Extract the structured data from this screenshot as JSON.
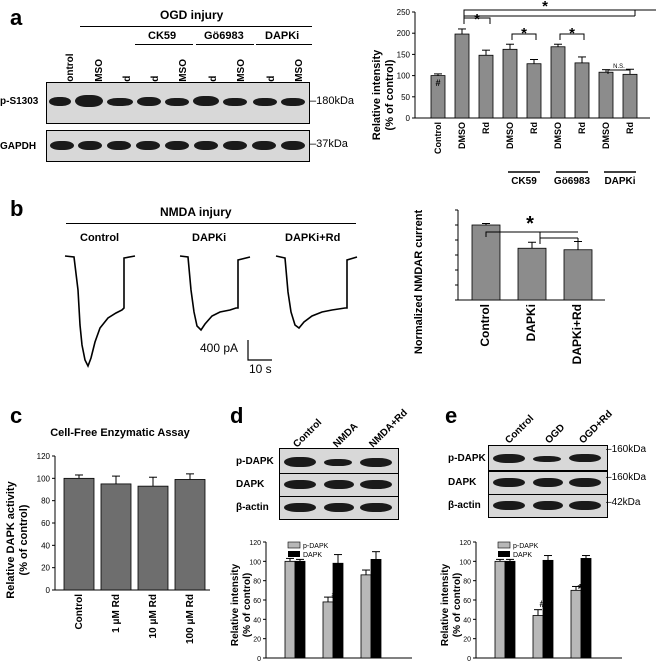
{
  "panel_a": {
    "letter": "a",
    "ogd_header": "OGD injury",
    "group_labels": [
      "CK59",
      "Gö6983",
      "DAPKi"
    ],
    "lane_labels": [
      "Control",
      "DMSO",
      "Rd",
      "Rd",
      "DMSO",
      "Rd",
      "DMSO",
      "Rd",
      "DMSO"
    ],
    "row_labels": [
      "p-S1303",
      "GAPDH"
    ],
    "size_markers": [
      "180kDa",
      "37kDa"
    ],
    "chart": {
      "ylabel": "Relative intensity\n(% of control)",
      "categories": [
        "Control",
        "DMSO",
        "Rd",
        "DMSO",
        "Rd",
        "DMSO",
        "Rd",
        "DMSO",
        "Rd"
      ],
      "group_labels": [
        "CK59",
        "Gö6983",
        "DAPKi"
      ],
      "ticks": [
        "0",
        "50",
        "100",
        "150",
        "200",
        "250"
      ],
      "marks": {
        "hash": "#",
        "star": "*",
        "ns": "N.S."
      }
    }
  },
  "panel_b": {
    "letter": "b",
    "header": "NMDA injury",
    "trace_labels": [
      "Control",
      "DAPKi",
      "DAPKi+Rd"
    ],
    "scale_y": "400 pA",
    "scale_x": "10 s",
    "chart": {
      "ylabel": "Normalized NMDAR current",
      "categories": [
        "Control",
        "DAPKi",
        "DAPKi+Rd"
      ],
      "ticks": [
        "0",
        "20",
        "40",
        "60",
        "80",
        "100",
        "120"
      ],
      "star": "*"
    }
  },
  "panel_c": {
    "letter": "c",
    "title": "Cell-Free Enzymatic Assay",
    "ylabel": "Relative DAPK activity\n(% of control)",
    "categories": [
      "Control",
      "1 μM Rd",
      "10 μM Rd",
      "100 μM Rd"
    ],
    "ticks": [
      "0",
      "20",
      "40",
      "60",
      "80",
      "100",
      "120"
    ]
  },
  "panel_d": {
    "letter": "d",
    "lane_labels": [
      "Control",
      "NMDA",
      "NMDA+Rd"
    ],
    "row_labels": [
      "p-DAPK",
      "DAPK",
      "β-actin"
    ],
    "legend": [
      "p-DAPK",
      "DAPK"
    ],
    "ylabel": "Relative intensity\n(% of control)",
    "ticks": [
      "0",
      "20",
      "40",
      "60",
      "80",
      "100",
      "120"
    ],
    "marks": {
      "hash": "#",
      "star": "*"
    }
  },
  "panel_e": {
    "letter": "e",
    "lane_labels": [
      "Control",
      "OGD",
      "OGD+Rd"
    ],
    "row_labels": [
      "p-DAPK",
      "DAPK",
      "β-actin"
    ],
    "size_markers": [
      "160kDa",
      "160kDa",
      "42kDa"
    ],
    "legend": [
      "p-DAPK",
      "DAPK"
    ],
    "ylabel": "Relative intensity\n(% of control)",
    "ticks": [
      "0",
      "20",
      "40",
      "60",
      "80",
      "100",
      "120"
    ],
    "marks": {
      "hash": "#",
      "star": "*"
    }
  },
  "colors": {
    "gray_bar": "#8c8c8c",
    "light_bar": "#b8b8b8",
    "black_bar": "#000000"
  },
  "chart_data": [
    {
      "type": "bar",
      "panel": "a",
      "categories": [
        "Control",
        "DMSO",
        "Rd",
        "CK59 DMSO",
        "CK59 Rd",
        "Gö6983 DMSO",
        "Gö6983 Rd",
        "DAPKi DMSO",
        "DAPKi Rd"
      ],
      "values": [
        100,
        198,
        148,
        162,
        128,
        168,
        130,
        108,
        103
      ],
      "errors": [
        4,
        12,
        12,
        12,
        10,
        6,
        14,
        6,
        12
      ],
      "ylabel": "Relative intensity (% of control)",
      "ylim": [
        0,
        250
      ]
    },
    {
      "type": "bar",
      "panel": "b",
      "categories": [
        "Control",
        "DAPKi",
        "DAPKi+Rd"
      ],
      "values": [
        100,
        69,
        67
      ],
      "errors": [
        2,
        8,
        11
      ],
      "ylabel": "Normalized NMDAR current",
      "ylim": [
        0,
        120
      ]
    },
    {
      "type": "bar",
      "panel": "c",
      "title": "Cell-Free Enzymatic Assay",
      "categories": [
        "Control",
        "1 μM Rd",
        "10 μM Rd",
        "100 μM Rd"
      ],
      "values": [
        100,
        95,
        93,
        99
      ],
      "errors": [
        3,
        7,
        8,
        5
      ],
      "ylabel": "Relative DAPK activity (% of control)",
      "ylim": [
        0,
        120
      ]
    },
    {
      "type": "bar",
      "panel": "d",
      "categories": [
        "Control",
        "NMDA",
        "NMDA+Rd"
      ],
      "series": [
        {
          "name": "p-DAPK",
          "values": [
            100,
            58,
            86
          ],
          "errors": [
            3,
            5,
            5
          ]
        },
        {
          "name": "DAPK",
          "values": [
            100,
            98,
            102
          ],
          "errors": [
            2,
            9,
            8
          ]
        }
      ],
      "ylabel": "Relative intensity (% of control)",
      "ylim": [
        0,
        120
      ]
    },
    {
      "type": "bar",
      "panel": "e",
      "categories": [
        "Control",
        "OGD",
        "OGD+Rd"
      ],
      "series": [
        {
          "name": "p-DAPK",
          "values": [
            100,
            44,
            70
          ],
          "errors": [
            2,
            6,
            4
          ]
        },
        {
          "name": "DAPK",
          "values": [
            100,
            101,
            103
          ],
          "errors": [
            2,
            5,
            3
          ]
        }
      ],
      "ylabel": "Relative intensity (% of control)",
      "ylim": [
        0,
        120
      ]
    }
  ]
}
